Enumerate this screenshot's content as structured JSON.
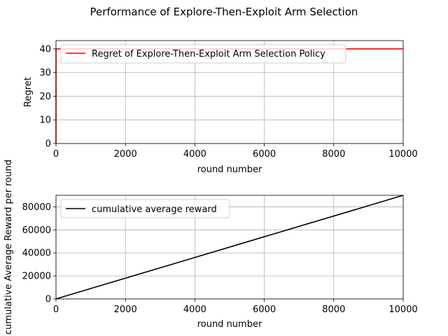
{
  "figure_title": "Performance of Explore-Then-Exploit Arm Selection",
  "colors": {
    "regret": "#ff0000",
    "reward": "#000000"
  },
  "chart_data": [
    {
      "type": "line",
      "xlabel": "round number",
      "ylabel": "Regret",
      "xlim": [
        0,
        10000
      ],
      "ylim": [
        0,
        43.5
      ],
      "xticks": [
        "0",
        "2000",
        "4000",
        "6000",
        "8000",
        "10000"
      ],
      "yticks": [
        "0",
        "10",
        "20",
        "30",
        "40"
      ],
      "grid": true,
      "legend_loc": "upper-left",
      "series": [
        {
          "name": "Regret of Explore-Then-Exploit Arm Selection Policy",
          "color": "#ff0000",
          "x": [
            0,
            1,
            50,
            10000
          ],
          "y": [
            0,
            40,
            40,
            40
          ]
        }
      ]
    },
    {
      "type": "line",
      "xlabel": "round number",
      "ylabel": "cumulative Average Reward per round",
      "xlim": [
        0,
        10000
      ],
      "ylim": [
        0,
        90000
      ],
      "xticks": [
        "0",
        "2000",
        "4000",
        "6000",
        "8000",
        "10000"
      ],
      "yticks": [
        "0",
        "20000",
        "40000",
        "60000",
        "80000"
      ],
      "grid": true,
      "legend_loc": "upper-left",
      "series": [
        {
          "name": "cumulative average reward",
          "color": "#000000",
          "x": [
            0,
            10000
          ],
          "y": [
            0,
            90000
          ]
        }
      ]
    }
  ]
}
